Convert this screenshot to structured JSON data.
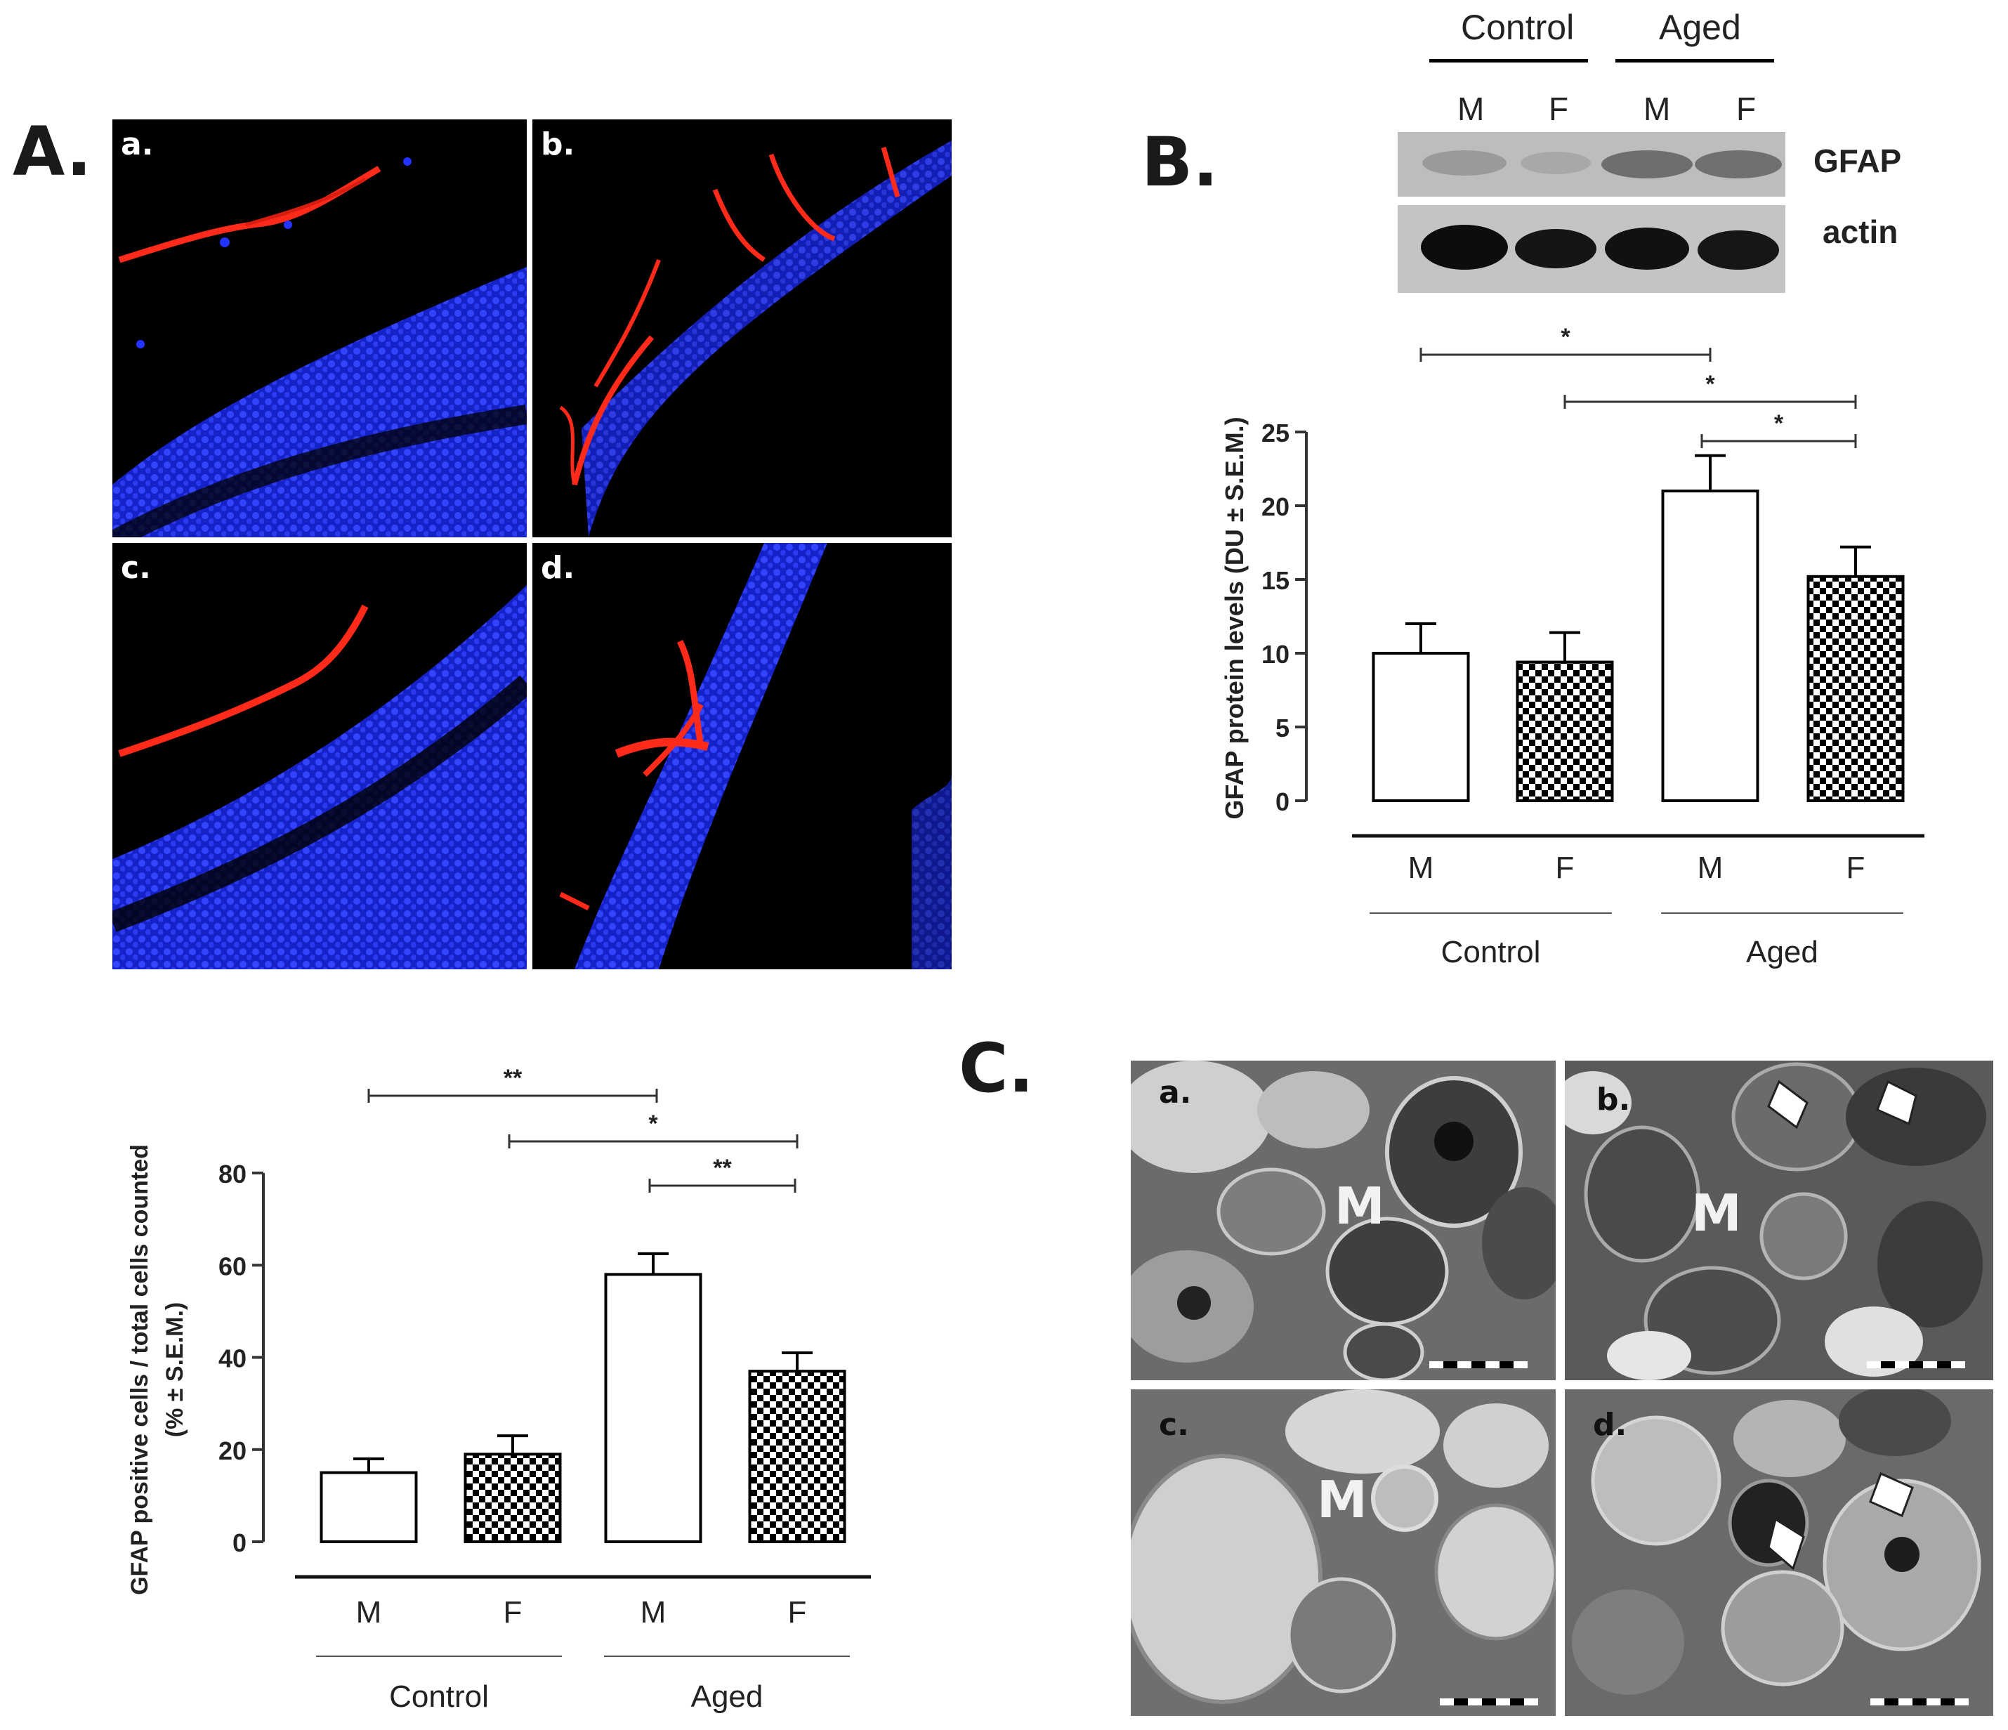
{
  "panels": {
    "A": {
      "label": "A.",
      "subpanels": [
        "a.",
        "b.",
        "c.",
        "d."
      ]
    },
    "B": {
      "label": "B.",
      "blot": {
        "groups": [
          "Control",
          "Aged"
        ],
        "lanes": [
          "M",
          "F",
          "M",
          "F"
        ],
        "bands": [
          "GFAP",
          "actin"
        ]
      }
    },
    "C": {
      "label": "C.",
      "subpanels": [
        "a.",
        "b.",
        "c.",
        "d."
      ],
      "marker": "M"
    }
  },
  "colors": {
    "bar_outline": "#000000",
    "bar_fill_control": "#ffffff",
    "checker": "#000000",
    "fluor_red": "#ff2a1a",
    "fluor_blue": "#2233ff"
  },
  "chart_data": [
    {
      "type": "bar",
      "id": "B",
      "categories": [
        "M",
        "F",
        "M",
        "F"
      ],
      "groups": [
        "Control",
        "Aged"
      ],
      "values": [
        10,
        9.4,
        21,
        15.2
      ],
      "errors": [
        2,
        2,
        2.4,
        2
      ],
      "patterns": [
        "open",
        "checker",
        "open",
        "checker"
      ],
      "ylabel": "GFAP protein levels (DU ± S.E.M.)",
      "ylim": [
        0,
        25
      ],
      "yticks": [
        "0",
        "5",
        "10",
        "15",
        "20",
        "25"
      ],
      "significance": [
        "*",
        "*",
        "*"
      ]
    },
    {
      "type": "bar",
      "id": "A-quant",
      "categories": [
        "M",
        "F",
        "M",
        "F"
      ],
      "groups": [
        "Control",
        "Aged"
      ],
      "values": [
        15,
        19,
        58,
        37
      ],
      "errors": [
        3,
        4,
        4.5,
        4
      ],
      "patterns": [
        "open",
        "checker",
        "open",
        "checker"
      ],
      "ylabel_line1": "GFAP positive cells / total cells counted",
      "ylabel_line2": "(% ± S.E.M.)",
      "ylim": [
        0,
        80
      ],
      "yticks": [
        "0",
        "20",
        "40",
        "60",
        "80"
      ],
      "significance": [
        "**",
        "*",
        "**"
      ]
    }
  ]
}
